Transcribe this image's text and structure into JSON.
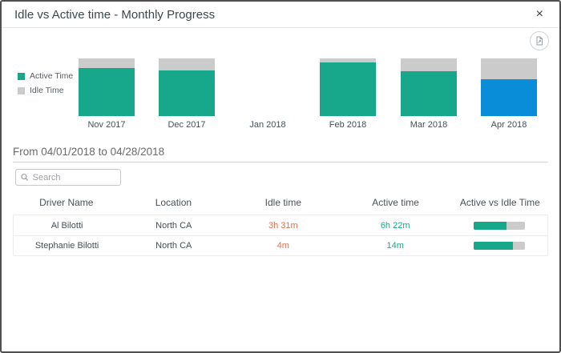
{
  "dialog": {
    "title": "Idle vs Active time - Monthly Progress",
    "close_label": "×"
  },
  "toolbar": {
    "export_icon": "export-report-icon"
  },
  "chart_data": {
    "type": "bar",
    "stacked": true,
    "title": "Idle vs Active time - Monthly Progress",
    "categories": [
      "Nov 2017",
      "Dec 2017",
      "Jan 2018",
      "Feb 2018",
      "Mar 2018",
      "Apr 2018"
    ],
    "series": [
      {
        "name": "Active Time",
        "values": [
          83,
          79,
          null,
          93,
          78,
          64
        ]
      },
      {
        "name": "Idle Time",
        "values": [
          17,
          21,
          null,
          7,
          22,
          36
        ]
      }
    ],
    "unit": "percent of month total",
    "ylim": [
      0,
      100
    ],
    "grid": false,
    "legend_position": "left",
    "selected_category": "Apr 2018",
    "colors": {
      "active": "#17a78b",
      "idle": "#cbcbcb",
      "selected_active": "#0a8dd9"
    }
  },
  "period": {
    "label": "From 04/01/2018 to 04/28/2018"
  },
  "search": {
    "placeholder": "Search"
  },
  "table": {
    "columns": [
      "Driver Name",
      "Location",
      "Idle time",
      "Active time",
      "Active vs Idle Time"
    ],
    "rows": [
      {
        "driver": "Al Bilotti",
        "location": "North CA",
        "idle": "3h 31m",
        "active": "6h 22m",
        "active_pct": 64
      },
      {
        "driver": "Stephanie Bilotti",
        "location": "North CA",
        "idle": "4m",
        "active": "14m",
        "active_pct": 77
      }
    ]
  },
  "colors": {
    "idle_text": "#e2714a",
    "active_text": "#17a78b",
    "progress_fill": "#17a78b",
    "progress_track": "#cbcbcb"
  }
}
